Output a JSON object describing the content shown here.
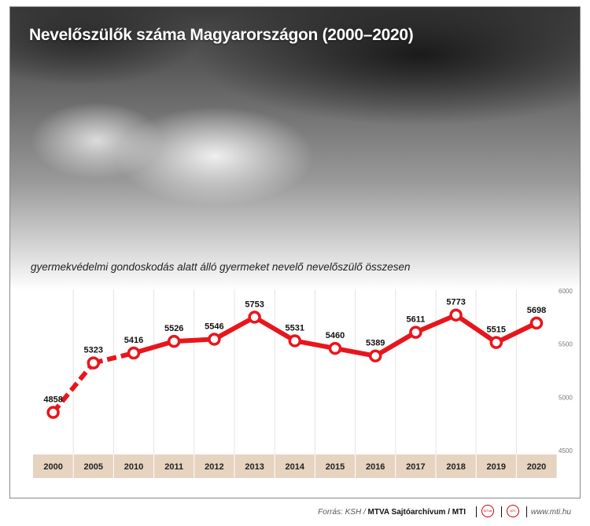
{
  "header": {
    "title": "Nevelőszülők száma Magyarországon (2000–2020)"
  },
  "chart_data": {
    "type": "line",
    "title": "Nevelőszülők száma Magyarországon (2000–2020)",
    "subtitle": "gyermekvédelmi gondoskodás alatt álló gyermeket nevelő nevelőszülő összesen",
    "categories": [
      "2000",
      "2005",
      "2010",
      "2011",
      "2012",
      "2013",
      "2014",
      "2015",
      "2016",
      "2017",
      "2018",
      "2019",
      "2020"
    ],
    "series": [
      {
        "values": [
          4858,
          5323,
          5416,
          5526,
          5546,
          5753,
          5531,
          5460,
          5389,
          5611,
          5773,
          5515,
          5698
        ]
      }
    ],
    "dashed_segments": [
      "2000-2005",
      "2005-2010"
    ],
    "yaxis": {
      "ticks": [
        "6000",
        "5500",
        "5000",
        "4500"
      ],
      "position": "right"
    },
    "ylim": [
      4500,
      6000
    ],
    "grid": "vertical",
    "colors": {
      "line": "#e8161c",
      "marker_fill": "#ffffff",
      "axis_band": "#e6d3c0"
    }
  },
  "footer": {
    "source_prefix": "Forrás: KSH / ",
    "source_bold": "MTVA Sajtóarchívum / MTI",
    "logo1": "MTVA",
    "logo2": "MTI",
    "url": "www.mti.hu"
  }
}
